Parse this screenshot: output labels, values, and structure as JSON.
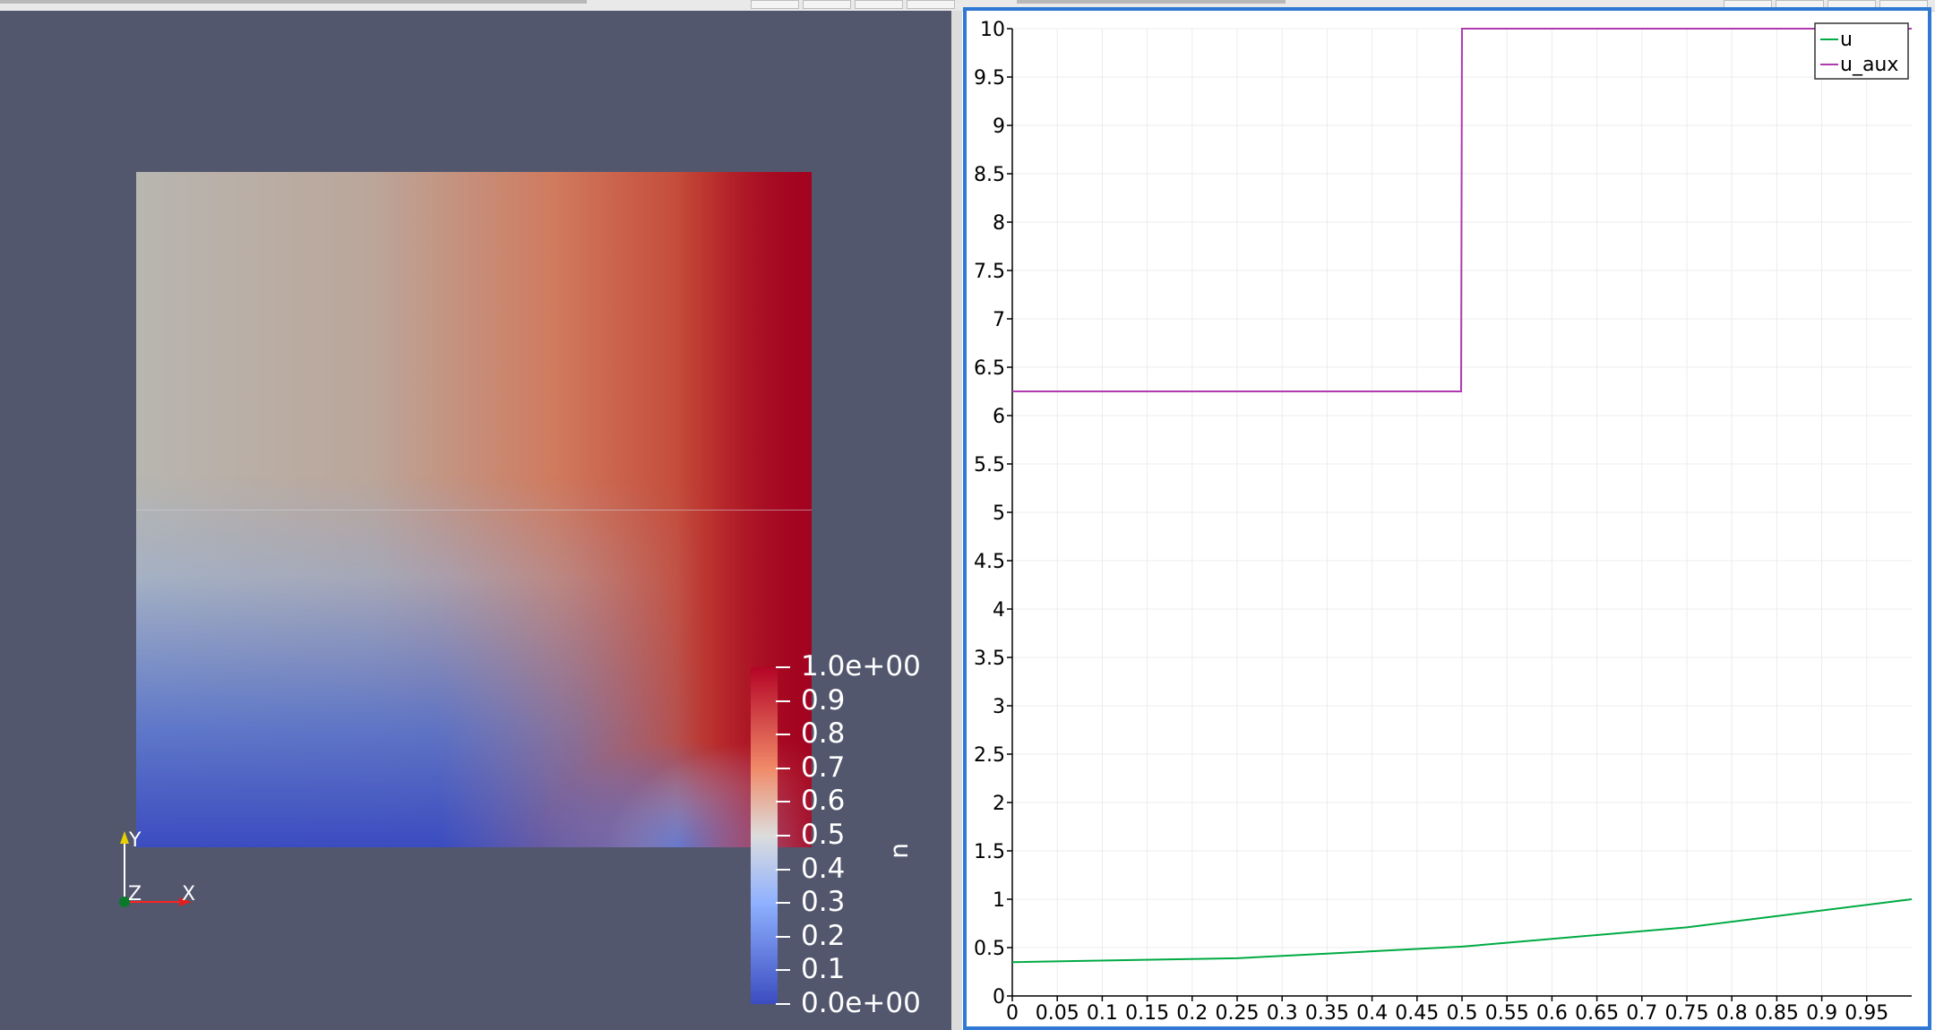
{
  "viewport": {
    "scalar_name": "u",
    "colormap": [
      "#3b4cc0",
      "#8fb1ff",
      "#dcdcdc",
      "#f08a68",
      "#b40426"
    ],
    "background": "#52576e",
    "colorbar_labels": [
      "1.0e+00",
      "0.9",
      "0.8",
      "0.7",
      "0.6",
      "0.5",
      "0.4",
      "0.3",
      "0.2",
      "0.1",
      "0.0e+00"
    ],
    "axes": {
      "y": "Y",
      "z": "Z",
      "x": "X"
    }
  },
  "chart_data": {
    "type": "line",
    "xlim": [
      0,
      1
    ],
    "ylim": [
      0,
      10
    ],
    "x_ticks": [
      0,
      0.05,
      0.1,
      0.15,
      0.2,
      0.25,
      0.3,
      0.35,
      0.4,
      0.45,
      0.5,
      0.55,
      0.6,
      0.65,
      0.7,
      0.75,
      0.8,
      0.85,
      0.9,
      0.95
    ],
    "x_tick_labels": [
      "0",
      "0.05",
      "0.1",
      "0.15",
      "0.2",
      "0.25",
      "0.3",
      "0.35",
      "0.4",
      "0.45",
      "0.5",
      "0.55",
      "0.6",
      "0.65",
      "0.7",
      "0.75",
      "0.8",
      "0.85",
      "0.9",
      "0.95"
    ],
    "y_ticks": [
      0,
      0.5,
      1,
      1.5,
      2,
      2.5,
      3,
      3.5,
      4,
      4.5,
      5,
      5.5,
      6,
      6.5,
      7,
      7.5,
      8,
      8.5,
      9,
      9.5,
      10
    ],
    "y_tick_labels": [
      "0",
      "0.5",
      "1",
      "1.5",
      "2",
      "2.5",
      "3",
      "3.5",
      "4",
      "4.5",
      "5",
      "5.5",
      "6",
      "6.5",
      "7",
      "7.5",
      "8",
      "8.5",
      "9",
      "9.5",
      "10"
    ],
    "grid": true,
    "legend_position": "top-right",
    "series": [
      {
        "name": "u",
        "color": "#00aa44",
        "x": [
          0,
          0.25,
          0.5,
          0.75,
          1.0
        ],
        "y": [
          0.35,
          0.39,
          0.51,
          0.71,
          1.0
        ]
      },
      {
        "name": "u_aux",
        "color": "#b03aaf",
        "x": [
          0,
          0.499,
          0.5,
          1.0
        ],
        "y": [
          6.25,
          6.25,
          10.0,
          10.0
        ]
      }
    ]
  }
}
